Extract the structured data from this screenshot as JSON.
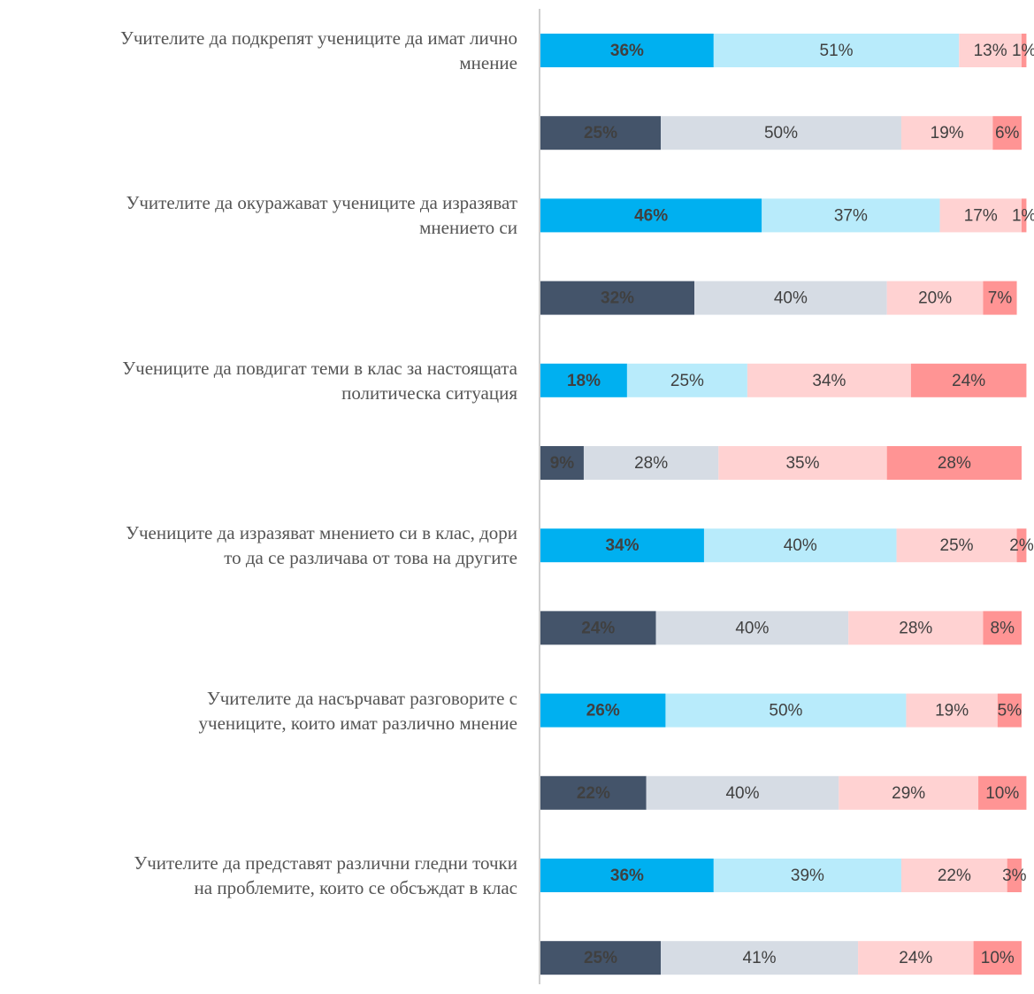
{
  "chart_data": {
    "type": "stacked-bar-horizontal",
    "categories": [
      "Учителите да подкрепят учениците да имат лично\nмнение",
      null,
      "Учителите да окуражават учениците да изразяват\nмнението си",
      null,
      "Учениците да повдигат теми в клас за настоящата\nполитическа ситуация",
      null,
      "Учениците да изразяват мнението си в клас, дори\nто да се различава от това на другите",
      null,
      "Учителите да насърчават разговорите с\nучениците, които имат различно мнение",
      null,
      "Учителите да представят различни гледни точки\nна проблемите, които се обсъждат в клас",
      null
    ],
    "xlim": [
      0,
      100
    ],
    "series": [
      {
        "color": "#00b0f0",
        "values": [
          36,
          null,
          46,
          null,
          18,
          null,
          34,
          null,
          26,
          null,
          36,
          null
        ],
        "value_labels": [
          "36%",
          null,
          "46%",
          null,
          "18%",
          null,
          "34%",
          null,
          "26%",
          null,
          "36%",
          null
        ]
      },
      {
        "color": "#b8ebfb",
        "values": [
          51,
          null,
          37,
          null,
          25,
          null,
          40,
          null,
          50,
          null,
          39,
          null
        ],
        "value_labels": [
          "51%",
          null,
          "37%",
          null,
          "25%",
          null,
          "40%",
          null,
          "50%",
          null,
          "39%",
          null
        ]
      },
      {
        "color": "#ffd2d2",
        "values": [
          13,
          null,
          17,
          null,
          34,
          null,
          25,
          null,
          19,
          null,
          22,
          null
        ],
        "value_labels": [
          "13%",
          null,
          "17%",
          null,
          "34%",
          null,
          "25%",
          null,
          "19%",
          null,
          "22%",
          null
        ]
      },
      {
        "color": "#ff9494",
        "values": [
          1,
          null,
          1,
          null,
          24,
          null,
          2,
          null,
          5,
          null,
          3,
          null
        ],
        "value_labels": [
          "1%",
          null,
          "1%",
          null,
          "24%",
          null,
          "2%",
          null,
          "5%",
          null,
          "3%",
          null
        ]
      },
      {
        "color": "#44546a",
        "values": [
          null,
          25,
          null,
          32,
          null,
          9,
          null,
          24,
          null,
          22,
          null,
          25
        ],
        "value_labels": [
          null,
          "25%",
          null,
          "32%",
          null,
          "9%",
          null,
          "24%",
          null,
          "22%",
          null,
          "25%"
        ]
      },
      {
        "color": "#d6dce4",
        "values": [
          null,
          50,
          null,
          40,
          null,
          28,
          null,
          40,
          null,
          40,
          null,
          41
        ],
        "value_labels": [
          null,
          "50%",
          null,
          "40%",
          null,
          "28%",
          null,
          "40%",
          null,
          "40%",
          null,
          "41%"
        ]
      },
      {
        "color": "#ffd2d2",
        "values": [
          null,
          19,
          null,
          20,
          null,
          35,
          null,
          28,
          null,
          29,
          null,
          24
        ],
        "value_labels": [
          null,
          "19%",
          null,
          "20%",
          null,
          "35%",
          null,
          "28%",
          null,
          "29%",
          null,
          "24%"
        ]
      },
      {
        "color": "#ff9494",
        "values": [
          null,
          6,
          null,
          7,
          null,
          28,
          null,
          8,
          null,
          10,
          null,
          10
        ],
        "value_labels": [
          null,
          "6%",
          null,
          "7%",
          null,
          "28%",
          null,
          "8%",
          null,
          "10%",
          null,
          "10%"
        ]
      }
    ]
  }
}
